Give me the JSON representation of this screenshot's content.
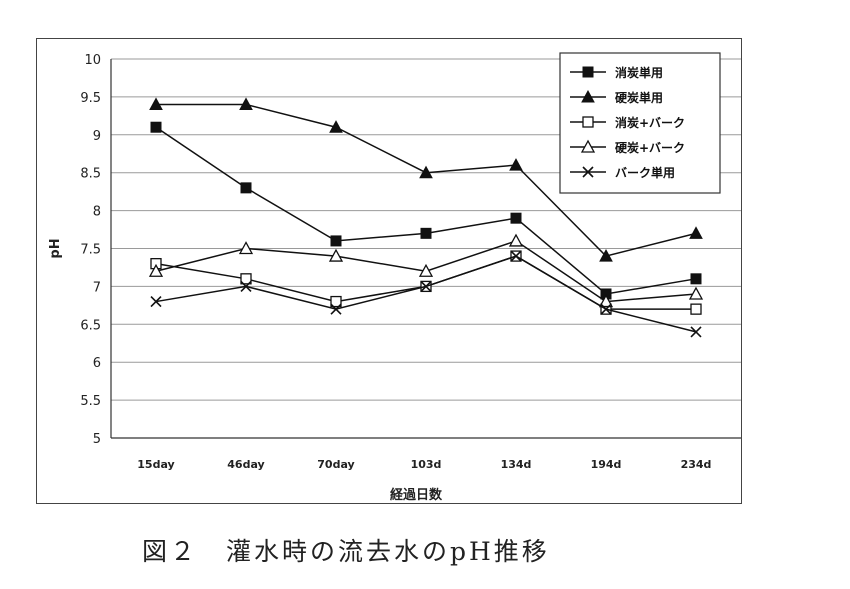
{
  "chart_data": {
    "type": "line",
    "categories": [
      "15day",
      "46day",
      "70day",
      "103d",
      "134d",
      "194d",
      "234d"
    ],
    "xlabel": "経過日数",
    "ylabel": "pH",
    "ylim": [
      5,
      10
    ],
    "yticks": [
      5,
      5.5,
      6,
      6.5,
      7,
      7.5,
      8,
      8.5,
      9,
      9.5,
      10
    ],
    "grid": true,
    "legend_position": "top-right",
    "series": [
      {
        "name": "消炭単用",
        "marker": "filled-square",
        "values": [
          9.1,
          8.3,
          7.6,
          7.7,
          7.9,
          6.9,
          7.1
        ]
      },
      {
        "name": "硬炭単用",
        "marker": "filled-triangle",
        "values": [
          9.4,
          9.4,
          9.1,
          8.5,
          8.6,
          7.4,
          7.7
        ]
      },
      {
        "name": "消炭+バーク",
        "marker": "open-square",
        "values": [
          7.3,
          7.1,
          6.8,
          7.0,
          7.4,
          6.7,
          6.7
        ]
      },
      {
        "name": "硬炭+バーク",
        "marker": "open-triangle",
        "values": [
          7.2,
          7.5,
          7.4,
          7.2,
          7.6,
          6.8,
          6.9
        ]
      },
      {
        "name": "バーク単用",
        "marker": "cross",
        "values": [
          6.8,
          7.0,
          6.7,
          7.0,
          7.4,
          6.7,
          6.4
        ]
      }
    ]
  },
  "caption": "図２　灌水時の流去水のpH推移"
}
